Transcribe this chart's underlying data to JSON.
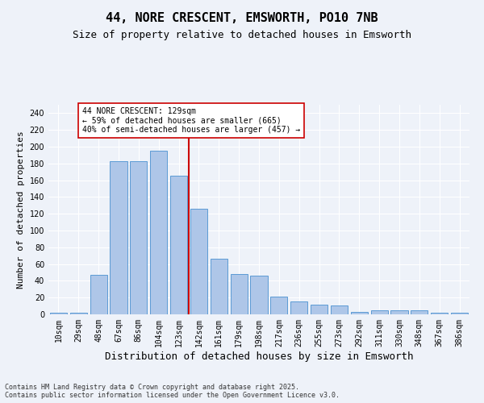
{
  "title": "44, NORE CRESCENT, EMSWORTH, PO10 7NB",
  "subtitle": "Size of property relative to detached houses in Emsworth",
  "xlabel": "Distribution of detached houses by size in Emsworth",
  "ylabel": "Number of detached properties",
  "footer": "Contains HM Land Registry data © Crown copyright and database right 2025.\nContains public sector information licensed under the Open Government Licence v3.0.",
  "categories": [
    "10sqm",
    "29sqm",
    "48sqm",
    "67sqm",
    "86sqm",
    "104sqm",
    "123sqm",
    "142sqm",
    "161sqm",
    "179sqm",
    "198sqm",
    "217sqm",
    "236sqm",
    "255sqm",
    "273sqm",
    "292sqm",
    "311sqm",
    "330sqm",
    "348sqm",
    "367sqm",
    "386sqm"
  ],
  "values": [
    2,
    2,
    47,
    183,
    183,
    195,
    165,
    126,
    66,
    48,
    46,
    21,
    15,
    12,
    11,
    3,
    5,
    5,
    5,
    2,
    2
  ],
  "bar_color": "#aec6e8",
  "bar_edge_color": "#5b9bd5",
  "vline_x_index": 6.5,
  "vline_color": "#cc0000",
  "annotation_text": "44 NORE CRESCENT: 129sqm\n← 59% of detached houses are smaller (665)\n40% of semi-detached houses are larger (457) →",
  "annotation_box_color": "#ffffff",
  "annotation_box_edge_color": "#cc0000",
  "ylim": [
    0,
    250
  ],
  "yticks": [
    0,
    20,
    40,
    60,
    80,
    100,
    120,
    140,
    160,
    180,
    200,
    220,
    240
  ],
  "bg_color": "#eef2f9",
  "grid_color": "#ffffff",
  "title_fontsize": 11,
  "subtitle_fontsize": 9,
  "ylabel_fontsize": 8,
  "xlabel_fontsize": 9,
  "tick_fontsize": 7,
  "annotation_fontsize": 7,
  "footer_fontsize": 6
}
